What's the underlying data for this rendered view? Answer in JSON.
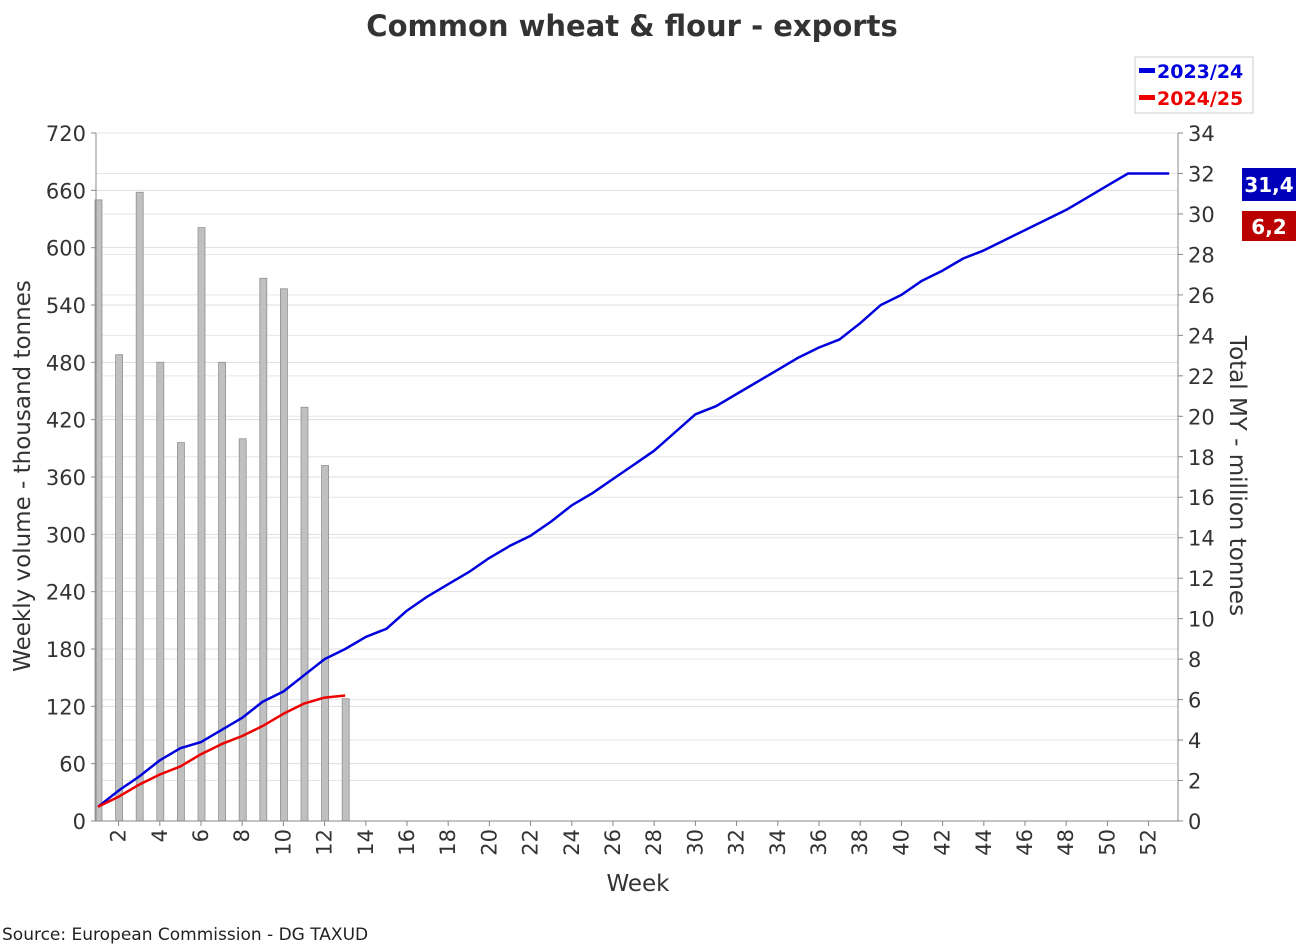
{
  "chart_data": {
    "type": "bar+line",
    "title": "Common wheat & flour - exports",
    "xlabel": "Week",
    "ylabel_left": "Weekly volume - thousand tonnes",
    "ylabel_right": "Total MY - million tonnes",
    "y_left_lim": [
      0,
      720
    ],
    "y_left_ticks": [
      0,
      60,
      120,
      180,
      240,
      300,
      360,
      420,
      480,
      540,
      600,
      660,
      720
    ],
    "y_right_lim": [
      0,
      34
    ],
    "y_right_ticks": [
      0,
      2,
      4,
      6,
      8,
      10,
      12,
      14,
      16,
      18,
      20,
      22,
      24,
      26,
      28,
      30,
      32,
      34
    ],
    "x_ticks": [
      2,
      4,
      6,
      8,
      10,
      12,
      14,
      16,
      18,
      20,
      22,
      24,
      26,
      28,
      30,
      32,
      34,
      36,
      38,
      40,
      42,
      44,
      46,
      48,
      50,
      52
    ],
    "grid": true,
    "bars": {
      "weeks": [
        1,
        2,
        3,
        4,
        5,
        6,
        7,
        8,
        9,
        10,
        11,
        12,
        13
      ],
      "values": [
        650,
        488,
        658,
        480,
        396,
        621,
        480,
        400,
        568,
        557,
        433,
        372,
        128
      ],
      "color": "#c0c0c0"
    },
    "series": [
      {
        "name": "2023/24",
        "axis": "right",
        "color": "#0000dd",
        "weeks": [
          1,
          2,
          3,
          4,
          5,
          6,
          7,
          8,
          9,
          10,
          11,
          12,
          13,
          14,
          15,
          16,
          17,
          18,
          19,
          20,
          21,
          22,
          23,
          24,
          25,
          26,
          27,
          28,
          29,
          30,
          31,
          32,
          33,
          34,
          35,
          36,
          37,
          38,
          39,
          40,
          41,
          42,
          43,
          44,
          45,
          46,
          47,
          48,
          49,
          50,
          51,
          52,
          53
        ],
        "values": [
          0.7,
          1.5,
          2.2,
          3.0,
          3.6,
          3.9,
          4.5,
          5.1,
          5.9,
          6.4,
          7.2,
          8.0,
          8.5,
          9.1,
          9.5,
          10.4,
          11.1,
          11.7,
          12.3,
          13.0,
          13.6,
          14.1,
          14.8,
          15.6,
          16.2,
          16.9,
          17.6,
          18.3,
          19.2,
          20.1,
          20.5,
          21.1,
          21.7,
          22.3,
          22.9,
          23.4,
          23.8,
          24.6,
          25.5,
          26.0,
          26.7,
          27.2,
          27.8,
          28.2,
          28.7,
          29.2,
          29.7,
          30.2,
          30.8,
          31.4,
          32.0,
          32.0,
          32.0
        ]
      },
      {
        "name": "2024/25",
        "axis": "right",
        "color": "#ee0000",
        "weeks": [
          1,
          2,
          3,
          4,
          5,
          6,
          7,
          8,
          9,
          10,
          11,
          12,
          13
        ],
        "values": [
          0.7,
          1.2,
          1.8,
          2.3,
          2.7,
          3.3,
          3.8,
          4.2,
          4.7,
          5.3,
          5.8,
          6.1,
          6.2
        ]
      }
    ],
    "legend": {
      "placement": "top-right",
      "entries": [
        "2023/24",
        "2024/25"
      ]
    },
    "badges": [
      {
        "label": "31,4",
        "color": "#0000bb"
      },
      {
        "label": "6,2",
        "color": "#bb0000"
      }
    ],
    "source": "Source: European Commission - DG TAXUD"
  }
}
